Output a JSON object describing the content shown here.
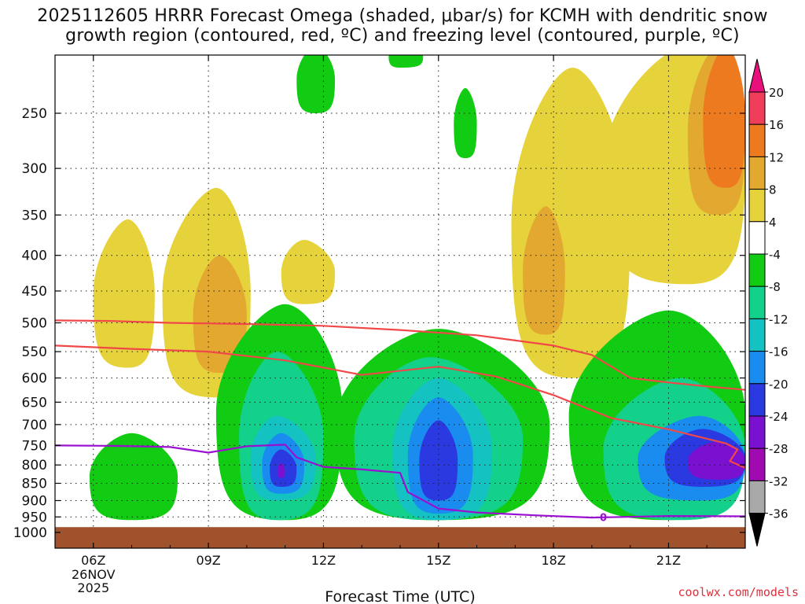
{
  "title": {
    "line1": "2025112605 HRRR Forecast Omega (shaded, μbar/s) for KCMH with dendritic snow",
    "line2": "growth region (contoured, red, ºC) and freezing level (contoured, purple, ºC)"
  },
  "credit": "coolwx.com/models",
  "freezing_label": "0",
  "chart_data": {
    "type": "heatmap",
    "title": "2025112605 HRRR Forecast Omega (shaded, μbar/s) for KCMH",
    "xlabel": "Forecast Time (UTC)",
    "ylabel": "",
    "x_ticks": [
      {
        "hour": 6,
        "label": "06Z",
        "sub": [
          "26NOV",
          "2025"
        ]
      },
      {
        "hour": 9,
        "label": "09Z"
      },
      {
        "hour": 12,
        "label": "12Z"
      },
      {
        "hour": 15,
        "label": "15Z"
      },
      {
        "hour": 18,
        "label": "18Z"
      },
      {
        "hour": 21,
        "label": "21Z"
      }
    ],
    "xlim": [
      5,
      23
    ],
    "y_ticks": [
      250,
      300,
      350,
      400,
      450,
      500,
      550,
      600,
      650,
      700,
      750,
      800,
      850,
      900,
      950,
      1000
    ],
    "ylim_hpa": [
      200,
      1000
    ],
    "colorbar": {
      "labels": [
        "20",
        "16",
        "12",
        "8",
        "4",
        "-4",
        "-8",
        "-12",
        "-16",
        "-20",
        "-24",
        "-28",
        "-32",
        "-36"
      ],
      "colors": [
        "#ffffff",
        "#f03d5a",
        "#ee7a20",
        "#e3a830",
        "#e6d33c",
        "#ffffff",
        "#12cc14",
        "#13d08a",
        "#14c2c2",
        "#1a8cf0",
        "#2a3ae0",
        "#7a10d0",
        "#a00ab0",
        "#a8a8a8"
      ],
      "top_color": "#e8107a",
      "bottom_color": "#000000"
    },
    "shading": [
      {
        "level": 4,
        "color": "#e6d33c",
        "regions": [
          {
            "center": [
              6.9,
              500
            ],
            "extent": [
              6.0,
              7.6,
              355,
              580
            ]
          },
          {
            "center": [
              9.2,
              470
            ],
            "extent": [
              7.8,
              10.1,
              320,
              640
            ]
          },
          {
            "center": [
              11.5,
              420
            ],
            "extent": [
              10.9,
              12.3,
              380,
              470
            ]
          },
          {
            "center": [
              18.5,
              380
            ],
            "extent": [
              16.9,
              20.0,
              215,
              600
            ]
          },
          {
            "center": [
              21.5,
              300
            ],
            "extent": [
              19.3,
              23.0,
              200,
              440
            ]
          }
        ]
      },
      {
        "level": 8,
        "color": "#e3a830",
        "regions": [
          {
            "center": [
              9.3,
              490
            ],
            "extent": [
              8.6,
              10.0,
              400,
              590
            ]
          },
          {
            "center": [
              17.8,
              410
            ],
            "extent": [
              17.2,
              18.3,
              340,
              520
            ]
          },
          {
            "center": [
              22.3,
              280
            ],
            "extent": [
              21.5,
              23.0,
              200,
              350
            ]
          }
        ]
      },
      {
        "level": 12,
        "color": "#ee7a20",
        "regions": [
          {
            "center": [
              22.5,
              260
            ],
            "extent": [
              21.9,
              23.0,
              200,
              320
            ]
          }
        ]
      },
      {
        "level": -4,
        "color": "#12cc14",
        "regions": [
          {
            "center": [
              11.8,
              210
            ],
            "extent": [
              11.3,
              12.3,
              200,
              250
            ]
          },
          {
            "center": [
              14.0,
              200
            ],
            "extent": [
              13.7,
              14.6,
              200,
              215
            ]
          },
          {
            "center": [
              15.7,
              255
            ],
            "extent": [
              15.4,
              16.0,
              230,
              290
            ]
          },
          {
            "center": [
              7.0,
              870
            ],
            "extent": [
              5.9,
              8.2,
              720,
              960
            ]
          },
          {
            "center": [
              11.0,
              760
            ],
            "extent": [
              9.2,
              12.5,
              470,
              960
            ]
          },
          {
            "center": [
              15.0,
              720
            ],
            "extent": [
              12.3,
              17.9,
              510,
              960
            ]
          },
          {
            "center": [
              21.0,
              760
            ],
            "extent": [
              18.4,
              23.0,
              480,
              960
            ]
          }
        ]
      },
      {
        "level": -8,
        "color": "#13d08a",
        "regions": [
          {
            "center": [
              14.8,
              760
            ],
            "extent": [
              12.8,
              17.2,
              560,
              960
            ]
          },
          {
            "center": [
              10.8,
              790
            ],
            "extent": [
              9.8,
              12.0,
              550,
              960
            ]
          },
          {
            "center": [
              21.3,
              790
            ],
            "extent": [
              19.3,
              23.0,
              600,
              960
            ]
          }
        ]
      },
      {
        "level": -12,
        "color": "#14c2c2",
        "regions": [
          {
            "center": [
              15.0,
              780
            ],
            "extent": [
              13.8,
              16.4,
              600,
              960
            ]
          },
          {
            "center": [
              10.8,
              820
            ],
            "extent": [
              10.1,
              11.8,
              680,
              900
            ]
          }
        ]
      },
      {
        "level": -16,
        "color": "#1a8cf0",
        "regions": [
          {
            "center": [
              15.0,
              790
            ],
            "extent": [
              14.2,
              15.9,
              640,
              940
            ]
          },
          {
            "center": [
              10.9,
              810
            ],
            "extent": [
              10.4,
              11.5,
              720,
              880
            ]
          },
          {
            "center": [
              21.8,
              770
            ],
            "extent": [
              20.2,
              23.0,
              680,
              900
            ]
          }
        ]
      },
      {
        "level": -20,
        "color": "#2a3ae0",
        "regions": [
          {
            "center": [
              15.0,
              810
            ],
            "extent": [
              14.5,
              15.5,
              690,
              900
            ]
          },
          {
            "center": [
              10.9,
              820
            ],
            "extent": [
              10.6,
              11.3,
              760,
              860
            ]
          },
          {
            "center": [
              21.9,
              770
            ],
            "extent": [
              20.9,
              23.0,
              710,
              860
            ]
          }
        ]
      },
      {
        "level": -24,
        "color": "#7a10d0",
        "regions": [
          {
            "center": [
              22.3,
              770
            ],
            "extent": [
              21.5,
              23.0,
              740,
              840
            ]
          },
          {
            "center": [
              10.9,
              815
            ],
            "extent": [
              10.8,
              11.0,
              795,
              835
            ]
          }
        ]
      }
    ],
    "contours": [
      {
        "name": "dgz-top",
        "color": "#f04848",
        "label": "dendritic snow growth region",
        "points": [
          [
            5,
            496
          ],
          [
            6.5,
            497
          ],
          [
            8,
            500
          ],
          [
            10,
            502
          ],
          [
            12,
            505
          ],
          [
            14,
            512
          ],
          [
            16,
            521
          ],
          [
            18,
            539
          ],
          [
            19,
            556
          ],
          [
            20,
            600
          ],
          [
            21,
            609
          ],
          [
            22,
            617
          ],
          [
            23,
            624
          ]
        ]
      },
      {
        "name": "dgz-bottom",
        "color": "#f04848",
        "label": "dendritic snow growth region",
        "points": [
          [
            5,
            539
          ],
          [
            7,
            545
          ],
          [
            9,
            550
          ],
          [
            11,
            566
          ],
          [
            13,
            594
          ],
          [
            15,
            578
          ],
          [
            16.5,
            597
          ],
          [
            18,
            635
          ],
          [
            19.5,
            685
          ],
          [
            21,
            711
          ],
          [
            22.5,
            745
          ],
          [
            22.8,
            760
          ],
          [
            22.6,
            790
          ],
          [
            23,
            808
          ]
        ]
      },
      {
        "name": "freezing-level",
        "color": "#9a10d0",
        "label": "0",
        "points": [
          [
            5,
            750
          ],
          [
            6.5,
            751
          ],
          [
            8,
            754
          ],
          [
            9,
            768
          ],
          [
            10,
            752
          ],
          [
            11,
            748
          ],
          [
            11.3,
            780
          ],
          [
            12,
            805
          ],
          [
            13,
            812
          ],
          [
            14,
            821
          ],
          [
            14.2,
            875
          ],
          [
            15,
            924
          ],
          [
            16,
            936
          ],
          [
            17.5,
            945
          ],
          [
            19,
            952
          ],
          [
            21,
            947
          ],
          [
            23,
            948
          ]
        ]
      }
    ],
    "terrain_hpa": 980
  }
}
